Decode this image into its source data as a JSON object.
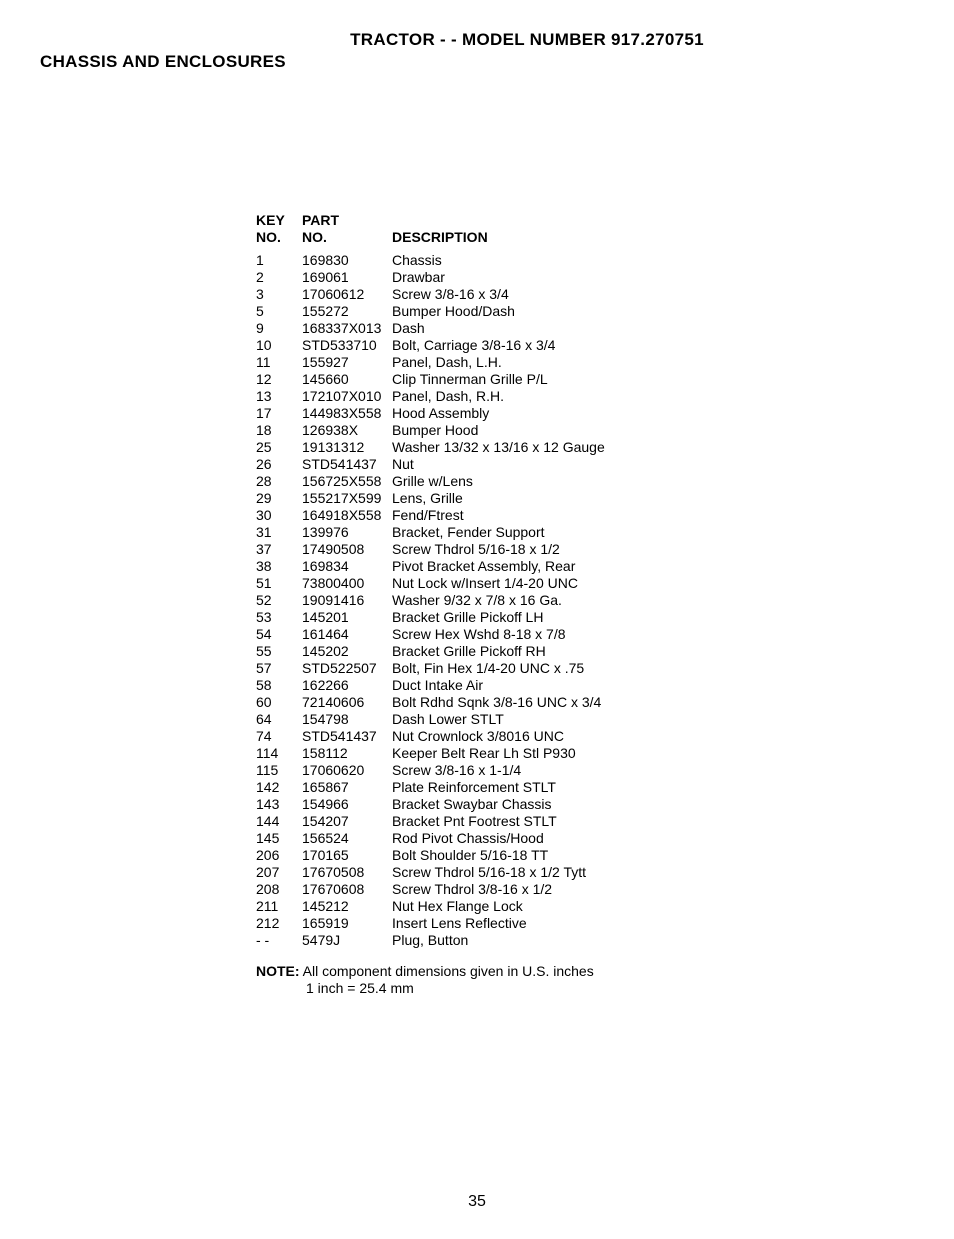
{
  "header": {
    "line1": "TRACTOR - - MODEL NUMBER 917.270751",
    "line2": "CHASSIS AND ENCLOSURES"
  },
  "columns": {
    "key_l1": "KEY",
    "key_l2": "NO.",
    "part_l1": "PART",
    "part_l2": "NO.",
    "desc_l1": "",
    "desc_l2": "DESCRIPTION"
  },
  "parts": [
    {
      "key": "1",
      "part": "169830",
      "desc": "Chassis"
    },
    {
      "key": "2",
      "part": "169061",
      "desc": "Drawbar"
    },
    {
      "key": "3",
      "part": "17060612",
      "desc": "Screw  3/8-16 x 3/4"
    },
    {
      "key": "5",
      "part": "155272",
      "desc": "Bumper Hood/Dash"
    },
    {
      "key": "9",
      "part": "168337X013",
      "desc": "Dash"
    },
    {
      "key": "10",
      "part": "STD533710",
      "desc": "Bolt, Carriage  3/8-16 x 3/4"
    },
    {
      "key": "11",
      "part": "155927",
      "desc": "Panel, Dash, L.H."
    },
    {
      "key": "12",
      "part": "145660",
      "desc": "Clip Tinnerman Grille P/L"
    },
    {
      "key": "13",
      "part": "172107X010",
      "desc": "Panel, Dash, R.H."
    },
    {
      "key": "17",
      "part": "144983X558",
      "desc": "Hood Assembly"
    },
    {
      "key": "18",
      "part": "126938X",
      "desc": "Bumper Hood"
    },
    {
      "key": "25",
      "part": "19131312",
      "desc": "Washer  13/32 x 13/16 x 12 Gauge"
    },
    {
      "key": "26",
      "part": "STD541437",
      "desc": "Nut"
    },
    {
      "key": "28",
      "part": "156725X558",
      "desc": "Grille w/Lens"
    },
    {
      "key": "29",
      "part": "155217X599",
      "desc": "Lens, Grille"
    },
    {
      "key": "30",
      "part": "164918X558",
      "desc": "Fend/Ftrest"
    },
    {
      "key": "31",
      "part": "139976",
      "desc": "Bracket, Fender Support"
    },
    {
      "key": "37",
      "part": "17490508",
      "desc": "Screw Thdrol  5/16-18 x 1/2"
    },
    {
      "key": "38",
      "part": "169834",
      "desc": "Pivot Bracket Assembly, Rear"
    },
    {
      "key": "51",
      "part": "73800400",
      "desc": "Nut Lock w/Insert  1/4-20 UNC"
    },
    {
      "key": "52",
      "part": "19091416",
      "desc": "Washer  9/32 x 7/8 x 16 Ga."
    },
    {
      "key": "53",
      "part": "145201",
      "desc": "Bracket Grille Pickoff LH"
    },
    {
      "key": "54",
      "part": "161464",
      "desc": "Screw Hex Wshd  8-18 x 7/8"
    },
    {
      "key": "55",
      "part": "145202",
      "desc": "Bracket Grille Pickoff RH"
    },
    {
      "key": "57",
      "part": "STD522507",
      "desc": "Bolt, Fin Hex  1/4-20 UNC x .75"
    },
    {
      "key": "58",
      "part": "162266",
      "desc": "Duct Intake Air"
    },
    {
      "key": "60",
      "part": "72140606",
      "desc": "Bolt Rdhd Sqnk 3/8-16 UNC x 3/4"
    },
    {
      "key": "64",
      "part": "154798",
      "desc": "Dash Lower STLT"
    },
    {
      "key": "74",
      "part": "STD541437",
      "desc": "Nut Crownlock  3/8016 UNC"
    },
    {
      "key": "114",
      "part": "158112",
      "desc": "Keeper Belt Rear Lh Stl P930"
    },
    {
      "key": "115",
      "part": "17060620",
      "desc": "Screw 3/8-16 x 1-1/4"
    },
    {
      "key": "142",
      "part": "165867",
      "desc": "Plate Reinforcement STLT"
    },
    {
      "key": "143",
      "part": "154966",
      "desc": "Bracket Swaybar Chassis"
    },
    {
      "key": "144",
      "part": "154207",
      "desc": "Bracket Pnt Footrest STLT"
    },
    {
      "key": "145",
      "part": "156524",
      "desc": "Rod Pivot Chassis/Hood"
    },
    {
      "key": "206",
      "part": "170165",
      "desc": "Bolt Shoulder  5/16-18 TT"
    },
    {
      "key": "207",
      "part": "17670508",
      "desc": "Screw Thdrol 5/16-18 x 1/2 Tytt"
    },
    {
      "key": "208",
      "part": "17670608",
      "desc": "Screw Thdrol 3/8-16 x 1/2"
    },
    {
      "key": "211",
      "part": "145212",
      "desc": "Nut Hex Flange Lock"
    },
    {
      "key": "212",
      "part": "165919",
      "desc": "Insert Lens Reflective"
    },
    {
      "key": "- -",
      "part": "5479J",
      "desc": "Plug, Button"
    }
  ],
  "note": {
    "label": "NOTE:",
    "text1": " All component dimensions given in U.S. inches",
    "text2": "1 inch = 25.4 mm"
  },
  "page_number": "35"
}
